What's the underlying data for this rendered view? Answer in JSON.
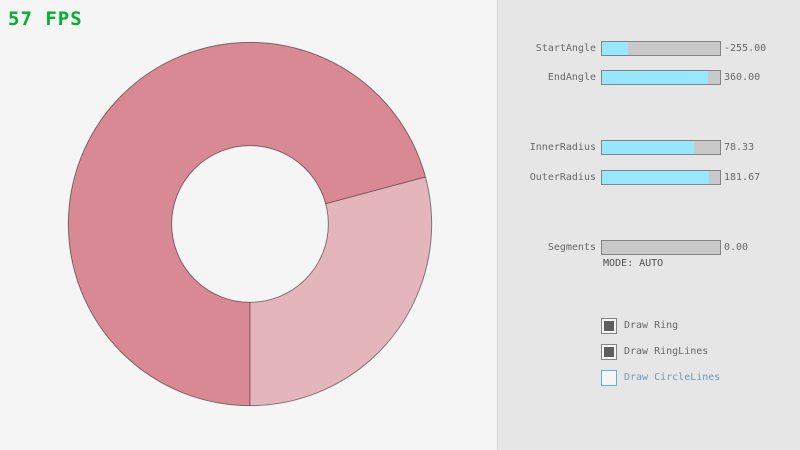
{
  "fps": {
    "label": "57 FPS"
  },
  "panel": {
    "sliders": [
      {
        "label": "StartAngle",
        "value": "-255.00",
        "fill_pct": 21.7
      },
      {
        "label": "EndAngle",
        "value": "360.00",
        "fill_pct": 90.0
      },
      {
        "label": "InnerRadius",
        "value": "78.33",
        "fill_pct": 78.3
      },
      {
        "label": "OuterRadius",
        "value": "181.67",
        "fill_pct": 90.8
      },
      {
        "label": "Segments",
        "value": "0.00",
        "fill_pct": 0
      }
    ],
    "mode_label": "MODE: AUTO",
    "checkboxes": [
      {
        "label": "Draw Ring",
        "checked": true
      },
      {
        "label": "Draw RingLines",
        "checked": true
      },
      {
        "label": "Draw CircleLines",
        "checked": false
      }
    ]
  },
  "colors": {
    "background": "#F5F5F5",
    "panel": "#E6E6E6",
    "fps": "#00B32E",
    "slider_fill": "#97E8FF",
    "slider_track": "#C9C9C9",
    "slider_border": "#838383",
    "text": "#686868",
    "mode_text": "#4E4E4E",
    "check_fill": "#5E5E5E",
    "check_border": "#838383",
    "uncheck_border": "#5BB2D9",
    "uncheck_text": "#6C9BBC",
    "ring_light": "#E5B5BC",
    "ring_dark": "#D98994",
    "ring_line": "rgba(0,0,0,0.45)"
  }
}
